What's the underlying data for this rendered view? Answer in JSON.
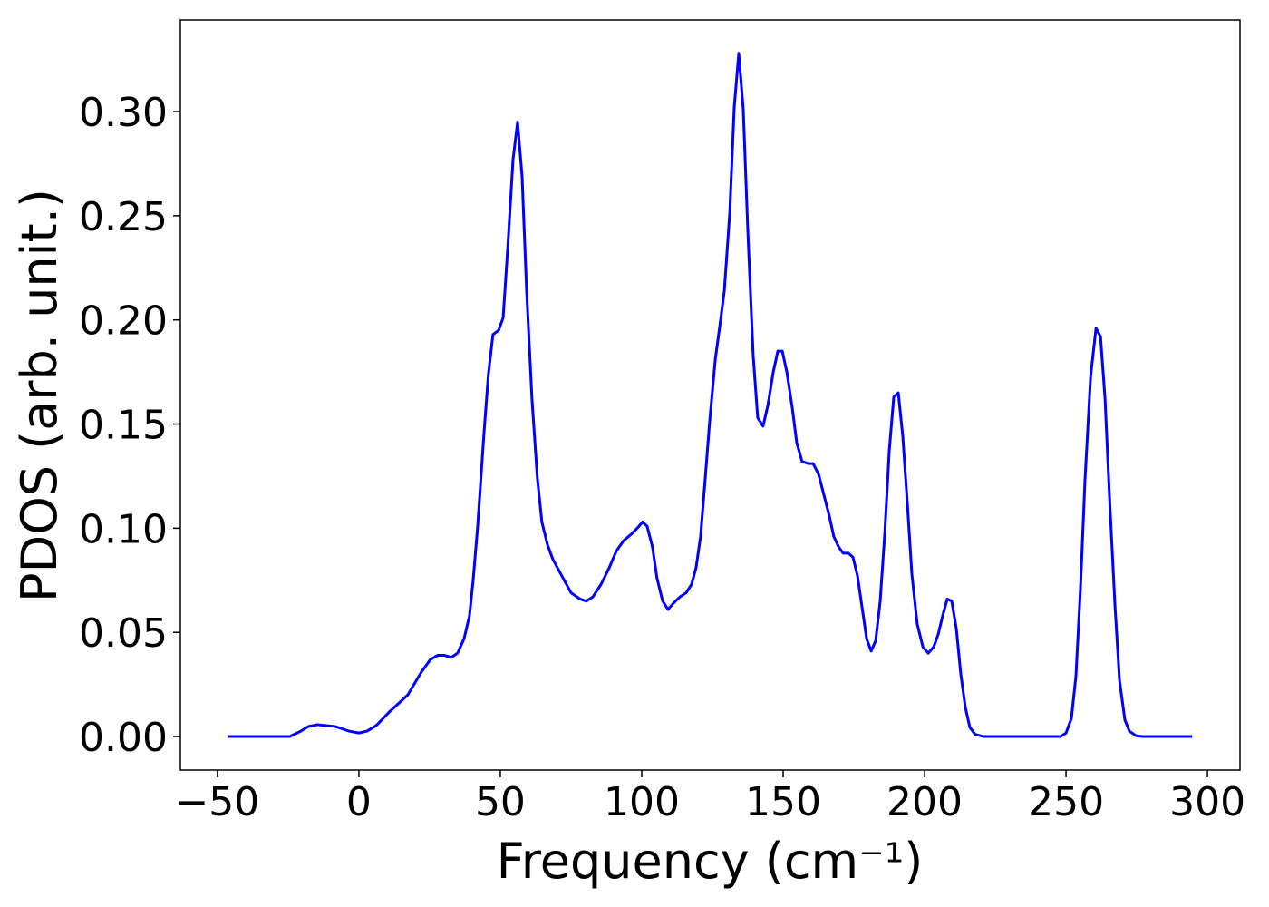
{
  "chart_data": {
    "type": "line",
    "xlabel": "Frequency (cm⁻¹)",
    "ylabel": "PDOS (arb. unit.)",
    "xlim": [
      -63.1,
      311.5
    ],
    "ylim": [
      -0.0161,
      0.344
    ],
    "xticks": [
      {
        "value": -50,
        "label": "−50"
      },
      0,
      50,
      100,
      150,
      200,
      250,
      300
    ],
    "yticks": [
      {
        "value": 0,
        "label": "0.00"
      },
      {
        "value": 0.05,
        "label": "0.05"
      },
      {
        "value": 0.1,
        "label": "0.10"
      },
      {
        "value": 0.15,
        "label": "0.15"
      },
      {
        "value": 0.2,
        "label": "0.20"
      },
      {
        "value": 0.25,
        "label": "0.25"
      },
      {
        "value": 0.3,
        "label": "0.30"
      }
    ],
    "grid": false,
    "series": [
      {
        "color": "#0000ff",
        "x": [
          -46.2,
          -24.4,
          -20.5,
          -17.9,
          -14.7,
          -8.3,
          -3.5,
          0,
          2.9,
          6.1,
          10.9,
          17.3,
          22.1,
          25.3,
          27.9,
          30.1,
          32.7,
          34.9,
          37.2,
          39.1,
          40.4,
          42.0,
          44.2,
          45.8,
          47.4,
          49.4,
          51.0,
          52.6,
          54.5,
          56.1,
          57.7,
          59.3,
          61.2,
          63.1,
          64.7,
          66.7,
          68.6,
          71.8,
          75.0,
          78.2,
          80.4,
          82.7,
          85.6,
          88.5,
          91.0,
          93.6,
          96.2,
          98.4,
          100.3,
          101.9,
          103.8,
          105.4,
          107.4,
          109.3,
          111.2,
          113.5,
          115.7,
          117.6,
          119.2,
          120.8,
          122.4,
          124.0,
          126.0,
          127.6,
          129.2,
          131.1,
          132.7,
          134.3,
          135.9,
          137.5,
          139.4,
          141.0,
          142.9,
          144.6,
          146.5,
          148.1,
          149.7,
          151.3,
          153.2,
          154.8,
          156.7,
          159.0,
          160.6,
          162.5,
          164.4,
          166.3,
          167.9,
          169.6,
          171.2,
          173.1,
          174.7,
          176.3,
          177.9,
          179.5,
          181.1,
          182.7,
          184.3,
          185.9,
          187.5,
          189.1,
          190.7,
          192.3,
          193.9,
          195.5,
          197.4,
          199.4,
          201.3,
          203.2,
          204.8,
          206.4,
          208.0,
          209.6,
          211.2,
          212.8,
          214.4,
          216.0,
          217.9,
          220.8,
          248.1,
          250.0,
          251.9,
          253.5,
          255.1,
          256.7,
          258.7,
          260.6,
          262.2,
          263.8,
          265.4,
          267.3,
          268.9,
          270.8,
          272.4,
          274.7,
          276.9,
          294.6
        ],
        "values": [
          0,
          0,
          0.0026,
          0.0048,
          0.0057,
          0.0048,
          0.0026,
          0.0017,
          0.0026,
          0.0052,
          0.012,
          0.02,
          0.031,
          0.037,
          0.039,
          0.039,
          0.038,
          0.04,
          0.047,
          0.058,
          0.075,
          0.101,
          0.145,
          0.174,
          0.193,
          0.195,
          0.201,
          0.234,
          0.277,
          0.295,
          0.269,
          0.214,
          0.162,
          0.124,
          0.103,
          0.092,
          0.085,
          0.077,
          0.069,
          0.066,
          0.065,
          0.067,
          0.073,
          0.081,
          0.089,
          0.094,
          0.097,
          0.1,
          0.103,
          0.101,
          0.091,
          0.076,
          0.065,
          0.061,
          0.064,
          0.067,
          0.069,
          0.073,
          0.081,
          0.096,
          0.123,
          0.151,
          0.181,
          0.197,
          0.214,
          0.251,
          0.302,
          0.328,
          0.301,
          0.243,
          0.183,
          0.153,
          0.149,
          0.159,
          0.175,
          0.185,
          0.185,
          0.175,
          0.158,
          0.141,
          0.132,
          0.131,
          0.131,
          0.126,
          0.116,
          0.106,
          0.096,
          0.091,
          0.088,
          0.088,
          0.086,
          0.077,
          0.062,
          0.047,
          0.041,
          0.046,
          0.065,
          0.097,
          0.137,
          0.163,
          0.165,
          0.144,
          0.112,
          0.078,
          0.054,
          0.043,
          0.04,
          0.043,
          0.049,
          0.058,
          0.066,
          0.065,
          0.052,
          0.03,
          0.014,
          0.0044,
          0.001,
          0,
          0,
          0.0017,
          0.0087,
          0.029,
          0.071,
          0.123,
          0.173,
          0.196,
          0.192,
          0.162,
          0.114,
          0.063,
          0.027,
          0.008,
          0.0026,
          0.0004,
          0,
          0
        ]
      }
    ]
  }
}
